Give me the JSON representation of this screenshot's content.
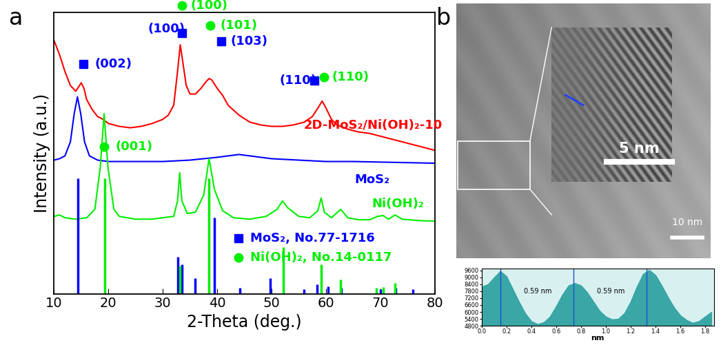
{
  "panel_labels": [
    "a",
    "b"
  ],
  "chart_data": [
    {
      "type": "line",
      "xlabel": "2-Theta (deg.)",
      "ylabel": "Intensity (a.u.)",
      "xlim": [
        10,
        80
      ],
      "xticks": [
        10,
        20,
        30,
        40,
        50,
        60,
        70,
        80
      ],
      "ylim": [
        0,
        100
      ],
      "tick_labels": "x",
      "series": [
        {
          "color": "#ff0000",
          "type": "line",
          "x": [
            10,
            11,
            12,
            13,
            14,
            14.5,
            15,
            15.5,
            16,
            17,
            18,
            19,
            20,
            22,
            24,
            26,
            28,
            30,
            31,
            32,
            32.7,
            33.2,
            33.7,
            34.3,
            35,
            36,
            37,
            38,
            38.5,
            39,
            40,
            41,
            42,
            44,
            46,
            48,
            50,
            52,
            54,
            56,
            57.5,
            58.5,
            59.3,
            60,
            61,
            62,
            64,
            66,
            68,
            70,
            72,
            74,
            76,
            78,
            80
          ],
          "values": [
            90,
            85,
            79,
            74,
            72,
            73.5,
            75,
            73,
            69,
            65.5,
            63,
            62,
            60.5,
            59.5,
            59,
            59.5,
            60.5,
            62,
            63.5,
            67,
            79,
            88.5,
            82,
            74,
            71,
            71,
            73,
            75.5,
            76.5,
            76,
            73,
            70.5,
            67,
            63.5,
            61,
            60,
            59.5,
            59.5,
            60,
            61,
            63,
            66,
            68.5,
            66,
            62,
            60,
            58.5,
            57.5,
            57,
            56,
            55,
            54,
            53,
            52,
            51
          ]
        },
        {
          "color": "#0000ff",
          "type": "line",
          "x": [
            10,
            11,
            12,
            13,
            13.7,
            14.3,
            14.9,
            15.6,
            16.5,
            18,
            20,
            25,
            30,
            35,
            40,
            42,
            44,
            46,
            50,
            55,
            60,
            65,
            70,
            75,
            80
          ],
          "values": [
            47.5,
            48,
            49,
            54,
            64,
            70,
            64,
            54,
            49,
            47.5,
            47,
            47,
            47,
            47.5,
            48.5,
            49,
            49.5,
            49,
            48,
            47.5,
            47,
            47,
            46.8,
            46.6,
            46.4
          ]
        },
        {
          "color": "#00ee00",
          "type": "line",
          "x": [
            10,
            11,
            12,
            14,
            16,
            17.5,
            18.5,
            19.2,
            19.9,
            21,
            22,
            25,
            28,
            30,
            32,
            32.7,
            33.1,
            33.5,
            34.5,
            36,
            37.5,
            38.5,
            39.5,
            41,
            43,
            46,
            49,
            51,
            52,
            53,
            55,
            57,
            58.5,
            59.1,
            59.7,
            61,
            62.7,
            64,
            66,
            68,
            69.5,
            70.5,
            71.5,
            72.7,
            74,
            77,
            80
          ],
          "values": [
            27.5,
            28,
            27,
            26.5,
            27,
            30,
            45,
            64,
            45,
            30,
            27.5,
            26.5,
            26.5,
            27,
            27.5,
            33,
            43,
            33,
            28.5,
            29,
            35,
            48,
            37,
            29.5,
            27,
            26.5,
            27.5,
            30,
            33,
            30.5,
            27.5,
            27,
            29.5,
            34,
            29,
            27,
            30,
            27,
            26.3,
            26.3,
            27.5,
            27.8,
            26.5,
            28,
            26.5,
            26,
            25.8
          ]
        },
        {
          "color": "#0000ff",
          "type": "bar",
          "x": [
            14.4,
            32.7,
            33.5,
            35.9,
            39.5,
            44.2,
            49.8,
            56.0,
            58.3,
            60.4,
            62.8,
            70.0,
            72.8,
            76.0
          ],
          "values": [
            41,
            13,
            10.5,
            5.6,
            27,
            2,
            5.6,
            1.5,
            3.2,
            2.5,
            2,
            1.5,
            2,
            1.5
          ]
        },
        {
          "color": "#00ee00",
          "type": "bar",
          "x": [
            19.3,
            33.1,
            38.5,
            52.1,
            59.1,
            62.7,
            69.3,
            70.5,
            72.7
          ],
          "values": [
            41,
            10,
            41,
            16.6,
            10.5,
            5,
            2,
            2.4,
            3.9
          ]
        }
      ],
      "markers": [
        {
          "x": 15.4,
          "y": 81.7,
          "color": "#0000ff",
          "marker": "square"
        },
        {
          "x": 19.2,
          "y": 52.4,
          "color": "#00ee00",
          "marker": "circle"
        },
        {
          "x": 33.5,
          "y": 92.7,
          "color": "#0000ff",
          "marker": "square"
        },
        {
          "x": 33.5,
          "y": 102.4,
          "color": "#00ee00",
          "marker": "circle"
        },
        {
          "x": 38.7,
          "y": 95.4,
          "color": "#00ee00",
          "marker": "circle"
        },
        {
          "x": 40.8,
          "y": 89.8,
          "color": "#0000ff",
          "marker": "square"
        },
        {
          "x": 57.9,
          "y": 75.9,
          "color": "#0000ff",
          "marker": "square"
        },
        {
          "x": 59.6,
          "y": 77.1,
          "color": "#00ee00",
          "marker": "circle"
        },
        {
          "x": 43.9,
          "y": 19.8,
          "color": "#0000ff",
          "marker": "square"
        },
        {
          "x": 43.9,
          "y": 12.9,
          "color": "#00ee00",
          "marker": "circle"
        }
      ],
      "annotations": [
        {
          "text": "(002)",
          "x": 17.5,
          "y": 81.7,
          "color": "#0000ff"
        },
        {
          "text": "(001)",
          "x": 21.3,
          "y": 52.4,
          "color": "#00ee00"
        },
        {
          "text": "(100)",
          "x": 27.2,
          "y": 94.1,
          "color": "#0000ff"
        },
        {
          "text": "(100)",
          "x": 35.1,
          "y": 102.4,
          "color": "#00ee00"
        },
        {
          "text": "(101)",
          "x": 40.5,
          "y": 95.4,
          "color": "#00ee00"
        },
        {
          "text": "(103)",
          "x": 42.4,
          "y": 89.8,
          "color": "#0000ff"
        },
        {
          "text": "(110)",
          "x": 51.5,
          "y": 75.9,
          "color": "#0000ff"
        },
        {
          "text": "(110)",
          "x": 61.1,
          "y": 77.1,
          "color": "#00ee00"
        },
        {
          "text": "2D-MoS₂/Ni(OH)₂-10",
          "x": 55.9,
          "y": 59.8,
          "color": "#ff0000"
        },
        {
          "text": "MoS₂",
          "x": 65.3,
          "y": 40.5,
          "color": "#0000ff"
        },
        {
          "text": "Ni(OH)₂",
          "x": 68.4,
          "y": 32.0,
          "color": "#00ee00"
        },
        {
          "text": "MoS₂, No.77-1716",
          "x": 46.1,
          "y": 19.8,
          "color": "#0000ff"
        },
        {
          "text": "Ni(OH)₂, No.14-0117",
          "x": 46.1,
          "y": 12.9,
          "color": "#00ee00"
        }
      ]
    },
    {
      "type": "area",
      "xlabel": "nm",
      "xlim": [
        0,
        1.87
      ],
      "xticks": [
        0.0,
        0.2,
        0.4,
        0.6,
        0.8,
        1.0,
        1.2,
        1.4,
        1.6,
        1.8
      ],
      "ylim": [
        4800,
        9750
      ],
      "yticks": [
        4800,
        5400,
        6000,
        6600,
        7200,
        7800,
        8400,
        9000,
        9600
      ],
      "color": "#3aa6a6",
      "x": [
        0.0,
        0.05,
        0.1,
        0.15,
        0.2,
        0.25,
        0.3,
        0.35,
        0.4,
        0.45,
        0.5,
        0.55,
        0.6,
        0.65,
        0.7,
        0.75,
        0.8,
        0.85,
        0.9,
        0.95,
        1.0,
        1.05,
        1.1,
        1.15,
        1.2,
        1.25,
        1.3,
        1.35,
        1.4,
        1.45,
        1.5,
        1.55,
        1.6,
        1.65,
        1.7,
        1.75,
        1.8,
        1.85
      ],
      "values": [
        8200,
        8400,
        9000,
        9550,
        9100,
        8000,
        6900,
        5900,
        5200,
        4950,
        5100,
        5600,
        6500,
        7500,
        8300,
        8500,
        8300,
        7700,
        6900,
        6100,
        5600,
        5350,
        5400,
        5900,
        6900,
        8200,
        9300,
        9650,
        9200,
        8300,
        7300,
        6400,
        5700,
        5300,
        5050,
        5200,
        5600,
        6000
      ],
      "vlines": [
        0.15,
        0.74,
        1.33
      ],
      "annotations": [
        {
          "text": "0.59 nm",
          "x": 0.45,
          "y": 7800
        },
        {
          "text": "0.59 nm",
          "x": 1.04,
          "y": 7800
        }
      ]
    }
  ],
  "image": {
    "scale_bars": [
      "5 nm",
      "10 nm"
    ]
  }
}
